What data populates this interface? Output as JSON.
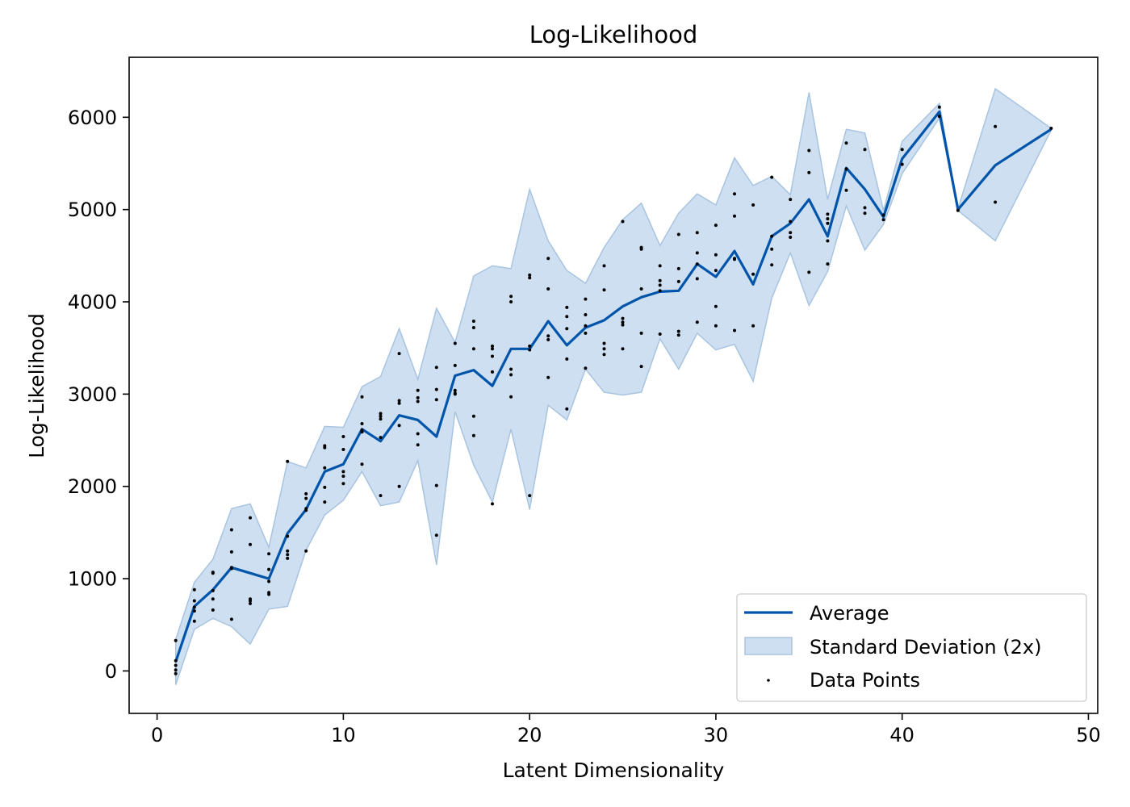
{
  "chart_data": {
    "type": "line",
    "title": "Log-Likelihood",
    "xlabel": "Latent Dimensionality",
    "ylabel": "Log-Likelihood",
    "xlim": [
      -1.5,
      50.5
    ],
    "ylim": [
      -460,
      6650
    ],
    "xticks": [
      0,
      10,
      20,
      30,
      40,
      50
    ],
    "yticks": [
      0,
      1000,
      2000,
      3000,
      4000,
      5000,
      6000
    ],
    "grid": false,
    "legend_position": "lower right",
    "legend": [
      "Average",
      "Standard Deviation (2x)",
      "Data Points"
    ],
    "colors": {
      "average": "#0055aa",
      "band_fill": "#cddff0",
      "band_edge": "#a8c4e0",
      "points": "#000000"
    },
    "series": [
      {
        "name": "Average",
        "x": [
          1,
          2,
          3,
          4,
          5,
          6,
          7,
          8,
          9,
          10,
          11,
          12,
          13,
          14,
          15,
          16,
          17,
          18,
          19,
          20,
          21,
          22,
          23,
          24,
          25,
          26,
          27,
          28,
          29,
          30,
          31,
          32,
          33,
          34,
          35,
          36,
          37,
          38,
          39,
          40,
          42,
          43,
          45,
          48
        ],
        "values": [
          100,
          700,
          880,
          1120,
          1060,
          1000,
          1490,
          1750,
          2160,
          2240,
          2620,
          2490,
          2770,
          2720,
          2540,
          3200,
          3260,
          3090,
          3490,
          3490,
          3790,
          3530,
          3720,
          3800,
          3950,
          4050,
          4110,
          4120,
          4410,
          4270,
          4550,
          4190,
          4710,
          4850,
          5110,
          4710,
          5450,
          5220,
          4920,
          5550,
          6060,
          5000,
          5480,
          5870
        ]
      },
      {
        "name": "Standard Deviation (2x)",
        "x": [
          1,
          2,
          3,
          4,
          5,
          6,
          7,
          8,
          9,
          10,
          11,
          12,
          13,
          14,
          15,
          16,
          17,
          18,
          19,
          20,
          21,
          22,
          23,
          24,
          25,
          26,
          27,
          28,
          29,
          30,
          31,
          32,
          33,
          34,
          35,
          36,
          37,
          38,
          39,
          40,
          42,
          43,
          45,
          48
        ],
        "lower": [
          -150,
          450,
          570,
          480,
          290,
          670,
          700,
          1310,
          1690,
          1850,
          2160,
          1790,
          1830,
          2280,
          1150,
          2810,
          2230,
          1830,
          2620,
          1750,
          2880,
          2720,
          3270,
          3020,
          2990,
          3020,
          3600,
          3270,
          3660,
          3480,
          3540,
          3140,
          4040,
          4530,
          3960,
          4330,
          5040,
          4560,
          4840,
          5390,
          5990,
          4990,
          4660,
          5860
        ],
        "upper": [
          340,
          960,
          1210,
          1760,
          1810,
          1340,
          2270,
          2200,
          2650,
          2640,
          3080,
          3190,
          3710,
          3160,
          3930,
          3560,
          4280,
          4390,
          4360,
          5220,
          4660,
          4340,
          4200,
          4590,
          4890,
          5070,
          4610,
          4960,
          5170,
          5050,
          5560,
          5260,
          5360,
          5160,
          6270,
          5110,
          5870,
          5830,
          4990,
          5740,
          6150,
          5010,
          6310,
          5880
        ]
      },
      {
        "name": "Data Points",
        "points": [
          [
            1,
            330
          ],
          [
            1,
            110
          ],
          [
            1,
            60
          ],
          [
            1,
            10
          ],
          [
            1,
            -30
          ],
          [
            2,
            880
          ],
          [
            2,
            760
          ],
          [
            2,
            690
          ],
          [
            2,
            650
          ],
          [
            2,
            540
          ],
          [
            3,
            1070
          ],
          [
            3,
            1060
          ],
          [
            3,
            870
          ],
          [
            3,
            780
          ],
          [
            3,
            660
          ],
          [
            4,
            1530
          ],
          [
            4,
            1290
          ],
          [
            4,
            1120
          ],
          [
            4,
            1110
          ],
          [
            4,
            560
          ],
          [
            5,
            1660
          ],
          [
            5,
            1370
          ],
          [
            5,
            780
          ],
          [
            5,
            760
          ],
          [
            5,
            730
          ],
          [
            6,
            1270
          ],
          [
            6,
            1100
          ],
          [
            6,
            970
          ],
          [
            6,
            850
          ],
          [
            6,
            830
          ],
          [
            7,
            2270
          ],
          [
            7,
            1460
          ],
          [
            7,
            1300
          ],
          [
            7,
            1260
          ],
          [
            7,
            1220
          ],
          [
            8,
            1920
          ],
          [
            8,
            1870
          ],
          [
            8,
            1760
          ],
          [
            8,
            1740
          ],
          [
            8,
            1300
          ],
          [
            9,
            2440
          ],
          [
            9,
            2420
          ],
          [
            9,
            2200
          ],
          [
            9,
            1990
          ],
          [
            9,
            1830
          ],
          [
            10,
            2540
          ],
          [
            10,
            2400
          ],
          [
            10,
            2160
          ],
          [
            10,
            2110
          ],
          [
            10,
            2030
          ],
          [
            11,
            2970
          ],
          [
            11,
            2680
          ],
          [
            11,
            2610
          ],
          [
            11,
            2590
          ],
          [
            11,
            2240
          ],
          [
            12,
            2790
          ],
          [
            12,
            2760
          ],
          [
            12,
            2730
          ],
          [
            12,
            2530
          ],
          [
            12,
            1900
          ],
          [
            13,
            3440
          ],
          [
            13,
            2930
          ],
          [
            13,
            2900
          ],
          [
            13,
            2660
          ],
          [
            13,
            2000
          ],
          [
            14,
            3040
          ],
          [
            14,
            2960
          ],
          [
            14,
            2920
          ],
          [
            14,
            2570
          ],
          [
            14,
            2450
          ],
          [
            15,
            3050
          ],
          [
            15,
            2940
          ],
          [
            15,
            3290
          ],
          [
            15,
            2010
          ],
          [
            15,
            1470
          ],
          [
            16,
            3550
          ],
          [
            16,
            3310
          ],
          [
            16,
            3040
          ],
          [
            16,
            3010
          ],
          [
            16,
            3000
          ],
          [
            17,
            3790
          ],
          [
            17,
            3720
          ],
          [
            17,
            3490
          ],
          [
            17,
            2760
          ],
          [
            17,
            2550
          ],
          [
            18,
            3520
          ],
          [
            18,
            3490
          ],
          [
            18,
            3410
          ],
          [
            18,
            3240
          ],
          [
            18,
            1810
          ],
          [
            19,
            4060
          ],
          [
            19,
            4000
          ],
          [
            19,
            3270
          ],
          [
            19,
            3210
          ],
          [
            19,
            2970
          ],
          [
            20,
            4290
          ],
          [
            20,
            4260
          ],
          [
            20,
            3520
          ],
          [
            20,
            3480
          ],
          [
            20,
            1900
          ],
          [
            21,
            4470
          ],
          [
            21,
            4140
          ],
          [
            21,
            3630
          ],
          [
            21,
            3590
          ],
          [
            21,
            3180
          ],
          [
            22,
            3940
          ],
          [
            22,
            3840
          ],
          [
            22,
            3710
          ],
          [
            22,
            3380
          ],
          [
            22,
            2840
          ],
          [
            23,
            4030
          ],
          [
            23,
            3860
          ],
          [
            23,
            3740
          ],
          [
            23,
            3660
          ],
          [
            23,
            3280
          ],
          [
            24,
            4390
          ],
          [
            24,
            4130
          ],
          [
            24,
            3550
          ],
          [
            24,
            3490
          ],
          [
            24,
            3430
          ],
          [
            25,
            4870
          ],
          [
            25,
            3820
          ],
          [
            25,
            3780
          ],
          [
            25,
            3750
          ],
          [
            25,
            3490
          ],
          [
            26,
            4590
          ],
          [
            26,
            4570
          ],
          [
            26,
            4140
          ],
          [
            26,
            3660
          ],
          [
            26,
            3300
          ],
          [
            27,
            4390
          ],
          [
            27,
            4230
          ],
          [
            27,
            4180
          ],
          [
            27,
            4120
          ],
          [
            27,
            3650
          ],
          [
            28,
            4730
          ],
          [
            28,
            4360
          ],
          [
            28,
            4220
          ],
          [
            28,
            3680
          ],
          [
            28,
            3640
          ],
          [
            29,
            4750
          ],
          [
            29,
            4530
          ],
          [
            29,
            4410
          ],
          [
            29,
            4250
          ],
          [
            29,
            3780
          ],
          [
            30,
            4830
          ],
          [
            30,
            4510
          ],
          [
            30,
            4340
          ],
          [
            30,
            3950
          ],
          [
            30,
            3740
          ],
          [
            31,
            5170
          ],
          [
            31,
            4930
          ],
          [
            31,
            4470
          ],
          [
            31,
            4460
          ],
          [
            31,
            3690
          ],
          [
            32,
            5050
          ],
          [
            32,
            4300
          ],
          [
            32,
            3740
          ],
          [
            33,
            5350
          ],
          [
            33,
            4710
          ],
          [
            33,
            4570
          ],
          [
            33,
            4400
          ],
          [
            34,
            5110
          ],
          [
            34,
            4870
          ],
          [
            34,
            4750
          ],
          [
            34,
            4700
          ],
          [
            35,
            5640
          ],
          [
            35,
            5400
          ],
          [
            35,
            4320
          ],
          [
            36,
            4950
          ],
          [
            36,
            4900
          ],
          [
            36,
            4850
          ],
          [
            36,
            4660
          ],
          [
            36,
            4410
          ],
          [
            37,
            5720
          ],
          [
            37,
            5440
          ],
          [
            37,
            5210
          ],
          [
            38,
            5650
          ],
          [
            38,
            5020
          ],
          [
            38,
            4960
          ],
          [
            39,
            4940
          ],
          [
            39,
            4890
          ],
          [
            40,
            5650
          ],
          [
            40,
            5490
          ],
          [
            42,
            6110
          ],
          [
            42,
            6010
          ],
          [
            43,
            4990
          ],
          [
            45,
            5900
          ],
          [
            45,
            5080
          ],
          [
            48,
            5880
          ]
        ]
      }
    ]
  }
}
